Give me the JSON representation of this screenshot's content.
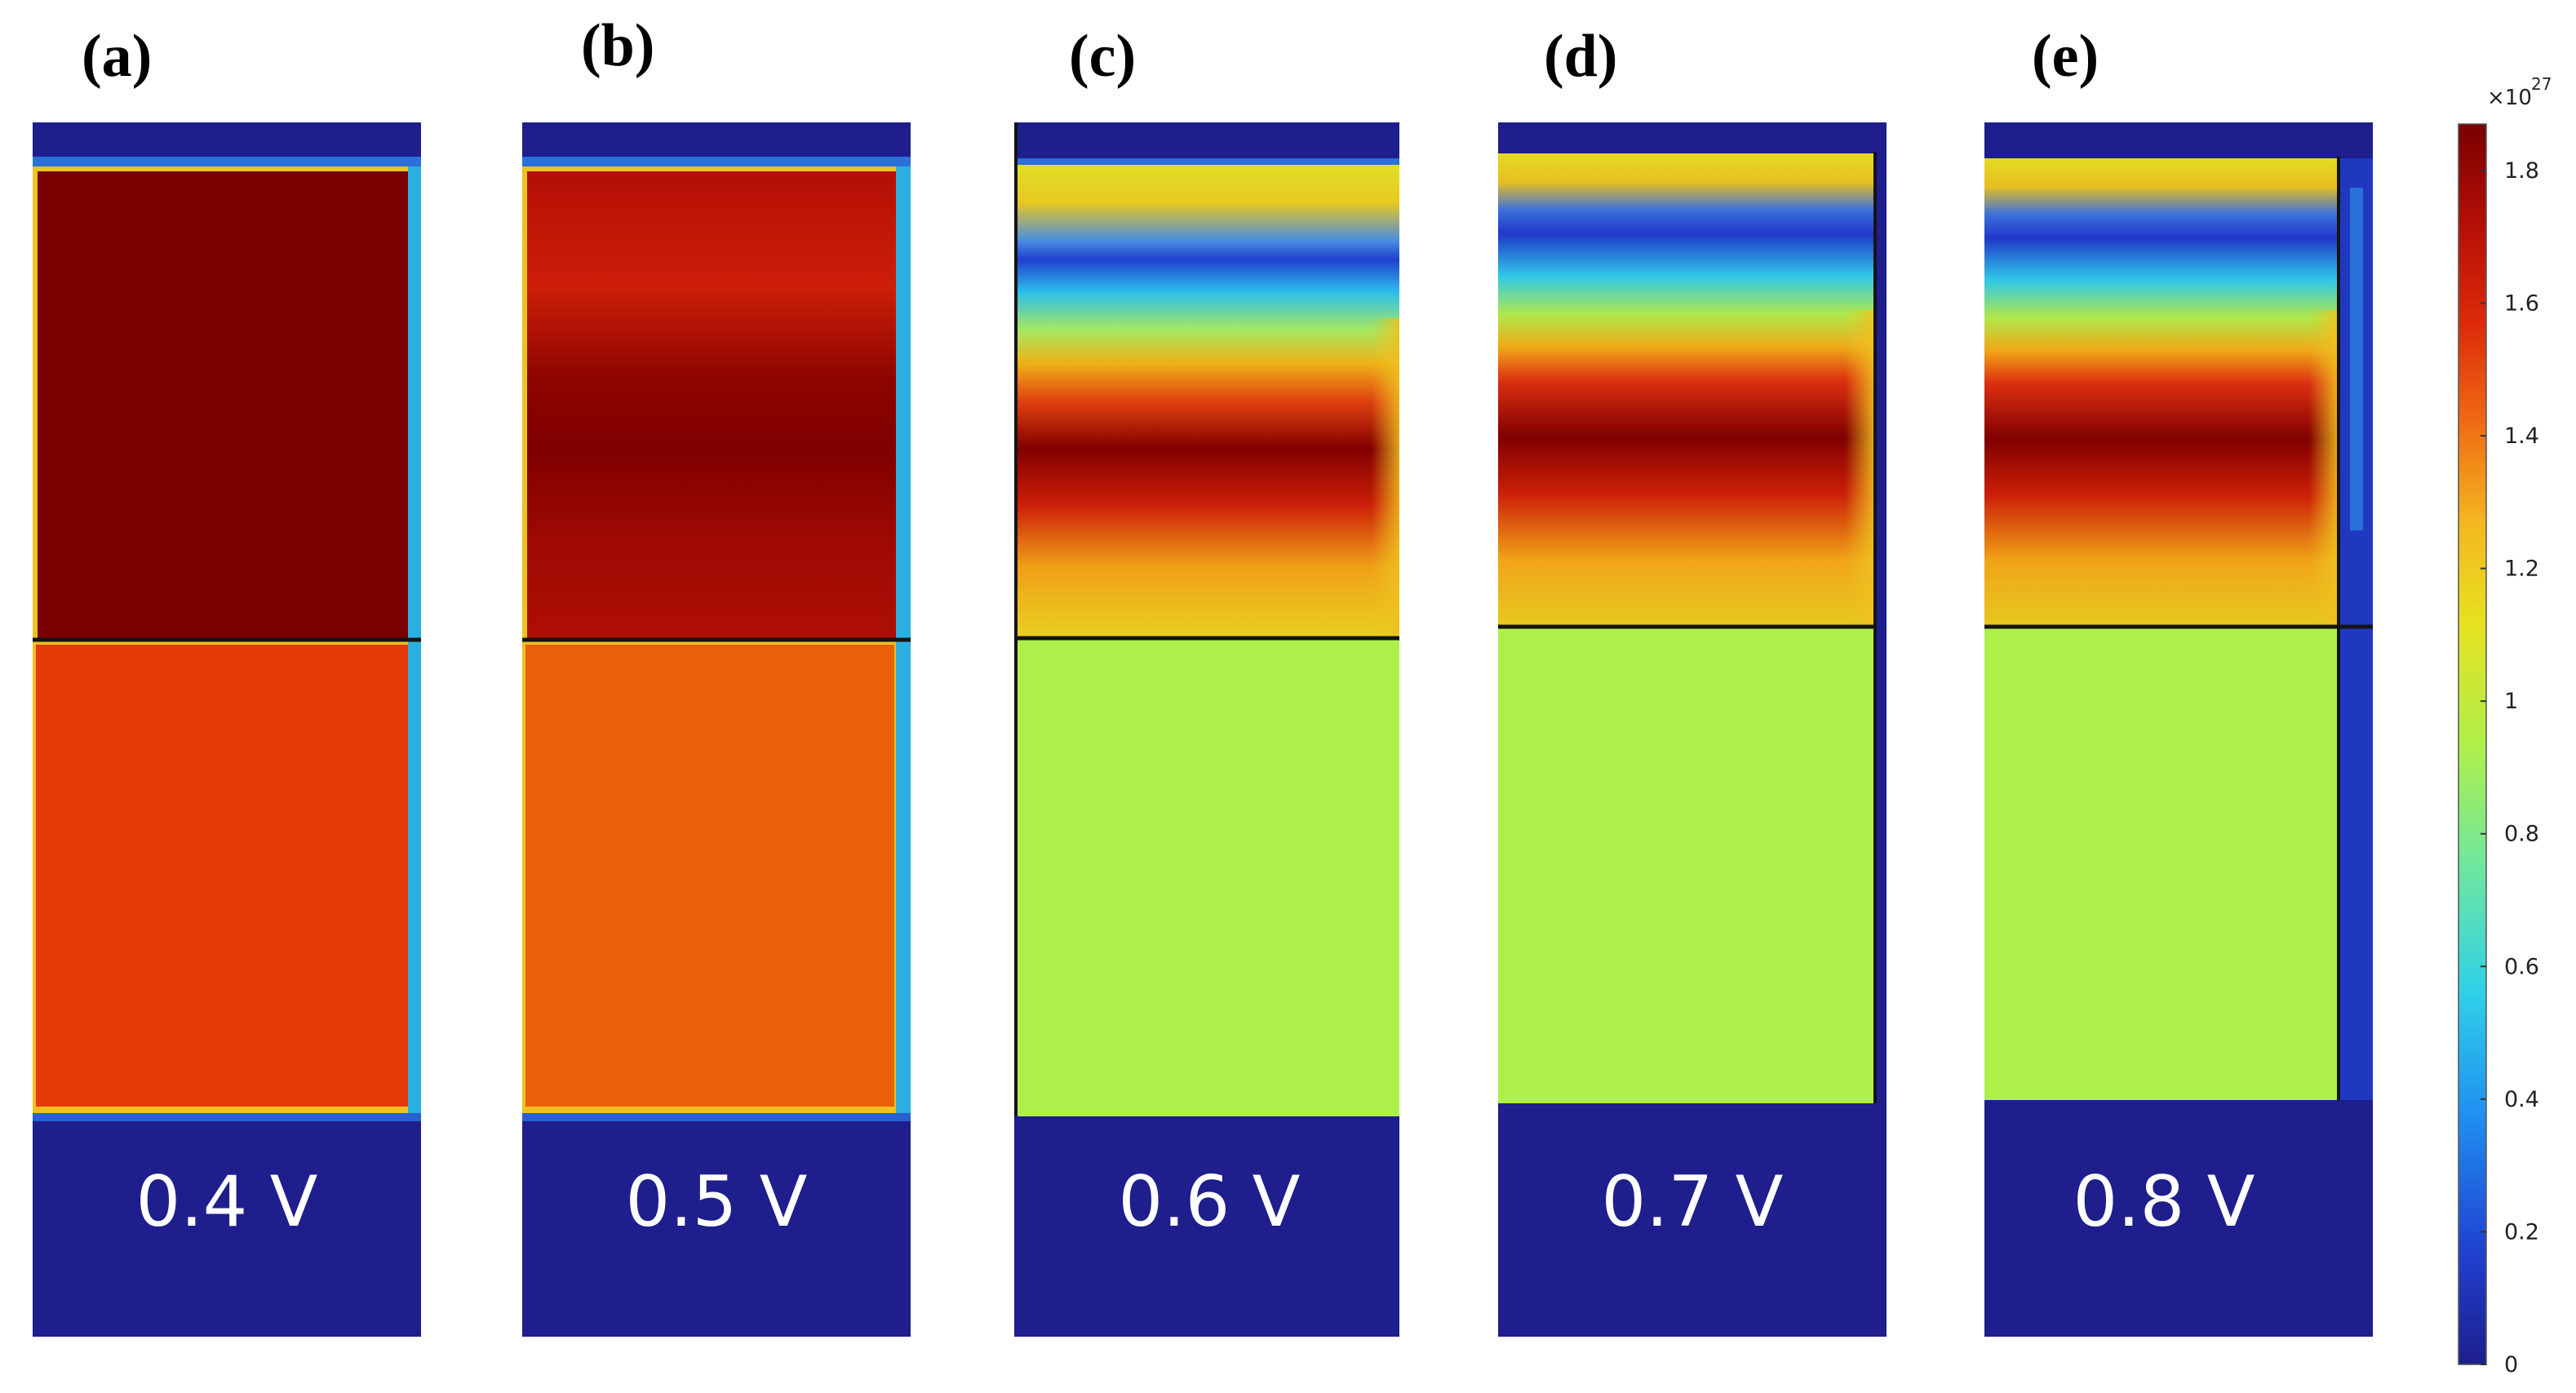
{
  "figure": {
    "panels": [
      {
        "id": "a",
        "label": "(a)",
        "voltage": "0.4 V"
      },
      {
        "id": "b",
        "label": "(b)",
        "voltage": "0.5 V"
      },
      {
        "id": "c",
        "label": "(c)",
        "voltage": "0.6 V"
      },
      {
        "id": "d",
        "label": "(d)",
        "voltage": "0.7 V"
      },
      {
        "id": "e",
        "label": "(e)",
        "voltage": "0.8 V"
      }
    ],
    "colorbar": {
      "scale_label": "×10",
      "scale_exponent": "27",
      "min": 0,
      "max": 1.87,
      "ticks": [
        "1.8",
        "1.6",
        "1.4",
        "1.2",
        "1",
        "0.8",
        "0.6",
        "0.4",
        "0.2",
        "0"
      ],
      "colormap": [
        "#1e1e8c",
        "#2040d0",
        "#1f8ff0",
        "#30d0e8",
        "#6ee6a0",
        "#b0f04a",
        "#e8e020",
        "#f5b520",
        "#f06a14",
        "#dc2a0a",
        "#b40e06",
        "#780000"
      ]
    }
  }
}
